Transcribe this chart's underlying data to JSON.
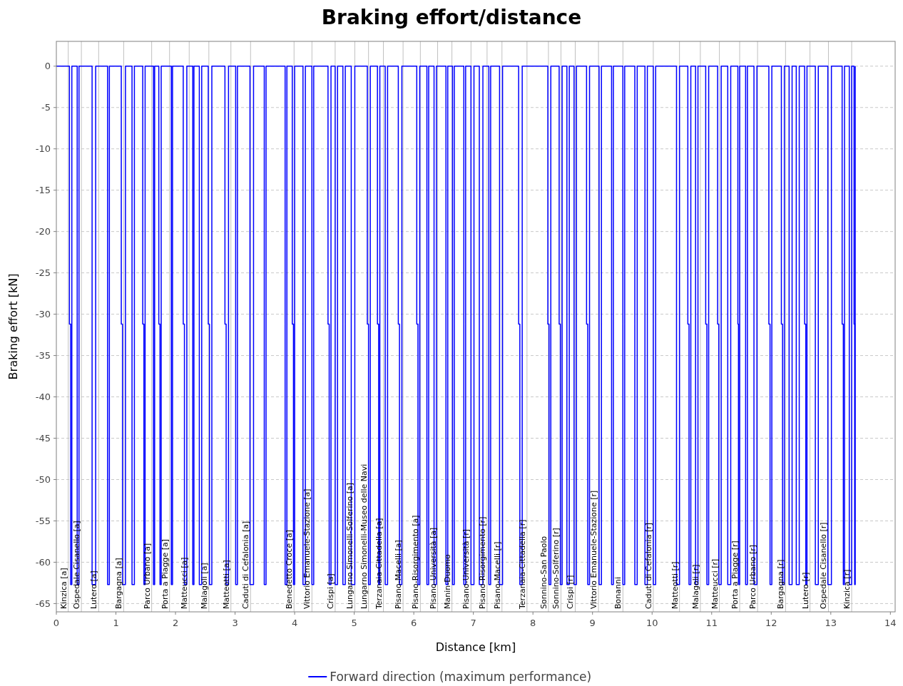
{
  "chart_data": {
    "type": "step",
    "title": "Braking effort/distance",
    "xlabel": "Distance [km]",
    "ylabel": "Braking effort [kN]",
    "xlim": [
      0,
      14.08
    ],
    "xticks": [
      0,
      1,
      2,
      3,
      4,
      5,
      6,
      7,
      8,
      9,
      10,
      11,
      12,
      13,
      14
    ],
    "ylim": [
      -66,
      3
    ],
    "yticks": [
      0,
      -5,
      -10,
      -15,
      -20,
      -25,
      -30,
      -35,
      -40,
      -45,
      -50,
      -55,
      -60,
      -65
    ],
    "grid": "y",
    "legend": "bottom",
    "line_style": "solid",
    "marker": "none",
    "series": [
      {
        "name": "Forward direction (maximum performance)",
        "color": "#0000ff",
        "x": [
          0,
          0.22,
          0.24,
          0.26,
          0.35,
          0.38,
          0.6,
          0.66,
          0.86,
          0.89,
          1.09,
          1.11,
          1.16,
          1.27,
          1.31,
          1.45,
          1.47,
          1.49,
          1.63,
          1.65,
          1.72,
          1.74,
          1.76,
          1.93,
          1.95,
          2.13,
          2.15,
          2.19,
          2.29,
          2.31,
          2.4,
          2.44,
          2.55,
          2.57,
          2.61,
          2.83,
          2.85,
          2.89,
          3.01,
          3.04,
          3.25,
          3.31,
          3.49,
          3.52,
          3.84,
          3.87,
          3.96,
          3.98,
          4,
          4.14,
          4.18,
          4.29,
          4.32,
          4.56,
          4.58,
          4.61,
          4.68,
          4.72,
          4.81,
          4.85,
          4.95,
          5.01,
          5.22,
          5.24,
          5.27,
          5.39,
          5.41,
          5.43,
          5.52,
          5.56,
          5.74,
          5.76,
          5.8,
          6.05,
          6.07,
          6.1,
          6.22,
          6.25,
          6.34,
          6.38,
          6.54,
          6.57,
          6.65,
          6.68,
          6.84,
          6.87,
          6.96,
          7.01,
          7.1,
          7.16,
          7.26,
          7.29,
          7.44,
          7.49,
          7.76,
          7.78,
          7.82,
          8.25,
          8.27,
          8.3,
          8.44,
          8.46,
          8.49,
          8.57,
          8.61,
          8.69,
          8.73,
          8.9,
          8.92,
          8.95,
          9.11,
          9.15,
          9.32,
          9.35,
          9.51,
          9.54,
          9.71,
          9.75,
          9.88,
          9.92,
          10.02,
          10.06,
          10.41,
          10.46,
          10.6,
          10.62,
          10.65,
          10.73,
          10.77,
          10.9,
          10.92,
          10.95,
          11.1,
          11.12,
          11.16,
          11.27,
          11.32,
          11.44,
          11.45,
          11.47,
          11.57,
          11.6,
          11.71,
          11.76,
          11.96,
          11.98,
          12.01,
          12.17,
          12.19,
          12.22,
          12.3,
          12.35,
          12.42,
          12.47,
          12.56,
          12.58,
          12.6,
          12.74,
          12.79,
          12.95,
          13.01,
          13.19,
          13.21,
          13.23,
          13.31,
          13.35,
          13.39,
          13.4,
          13.41
        ],
        "values": [
          0,
          -31.2,
          -62.7,
          0,
          -62.7,
          0,
          -62.7,
          0,
          -62.7,
          0,
          -31.2,
          -62.7,
          0,
          -62.7,
          0,
          -31.2,
          -62.7,
          0,
          -62.7,
          0,
          -31.2,
          -62.7,
          0,
          -62.7,
          0,
          -31.2,
          -62.7,
          0,
          -62.7,
          0,
          -62.7,
          0,
          -31.2,
          -62.7,
          0,
          -31.2,
          -62.7,
          0,
          -62.7,
          0,
          -62.7,
          0,
          -62.7,
          0,
          -62.7,
          0,
          -31.2,
          -62.7,
          0,
          -62.7,
          0,
          -62.7,
          0,
          -31.2,
          -62.7,
          0,
          -62.7,
          0,
          -62.7,
          0,
          -62.7,
          0,
          -31.2,
          -62.7,
          0,
          -31.2,
          -62.7,
          0,
          -62.7,
          0,
          -31.2,
          -62.7,
          0,
          -31.2,
          -62.7,
          0,
          -62.7,
          0,
          -62.7,
          0,
          -62.7,
          0,
          -62.7,
          0,
          -62.7,
          0,
          -62.7,
          0,
          -62.7,
          0,
          -62.7,
          0,
          -62.7,
          0,
          -31.2,
          -62.7,
          0,
          -31.2,
          -62.7,
          0,
          -31.2,
          -62.7,
          0,
          -62.7,
          0,
          -62.7,
          0,
          -31.2,
          -62.7,
          0,
          -62.7,
          0,
          -62.7,
          0,
          -62.7,
          0,
          -62.7,
          0,
          -62.7,
          0,
          -62.7,
          0,
          -62.7,
          0,
          -31.2,
          -62.7,
          0,
          -62.7,
          0,
          -31.2,
          -62.7,
          0,
          -31.2,
          -62.7,
          0,
          -62.7,
          0,
          -31.2,
          -62.7,
          0,
          -62.7,
          0,
          -62.7,
          0,
          -31.2,
          -62.7,
          0,
          -31.2,
          -62.7,
          0,
          -62.7,
          0,
          -62.7,
          0,
          -31.2,
          -62.7,
          0,
          -62.7,
          0,
          -62.7,
          0,
          -31.2,
          -62.7,
          0,
          -62.7,
          0,
          -31.2,
          -62.7,
          0
        ]
      }
    ],
    "ref_lines": [
      {
        "axis": "x",
        "value": 0.2,
        "label": "Kinzica [a]",
        "color": "#c0c0c0"
      },
      {
        "axis": "x",
        "value": 0.42,
        "label": "Ospedale Cisanello [a]",
        "color": "#c0c0c0"
      },
      {
        "axis": "x",
        "value": 0.71,
        "label": "Lutero [a]",
        "color": "#c0c0c0"
      },
      {
        "axis": "x",
        "value": 1.13,
        "label": "Bargagna [a]",
        "color": "#c0c0c0"
      },
      {
        "axis": "x",
        "value": 1.6,
        "label": "Parco Urbano [a]",
        "color": "#c0c0c0"
      },
      {
        "axis": "x",
        "value": 1.9,
        "label": "Porta a Piagge [a]",
        "color": "#c0c0c0"
      },
      {
        "axis": "x",
        "value": 2.23,
        "label": "Matteucci [a]",
        "color": "#c0c0c0"
      },
      {
        "axis": "x",
        "value": 2.56,
        "label": "Malagoli [a]",
        "color": "#c0c0c0"
      },
      {
        "axis": "x",
        "value": 2.93,
        "label": "Matteotti [a]",
        "color": "#c0c0c0"
      },
      {
        "axis": "x",
        "value": 3.26,
        "label": "Caduti di Cefalonia [a]",
        "color": "#c0c0c0"
      },
      {
        "axis": "x",
        "value": 3.99,
        "label": "Benedetto Croce [a]",
        "color": "#c0c0c0"
      },
      {
        "axis": "x",
        "value": 4.29,
        "label": "Vittorio Emanuele-Stazione [a]",
        "color": "#c0c0c0"
      },
      {
        "axis": "x",
        "value": 4.68,
        "label": "Crispi [a]",
        "color": "#c0c0c0"
      },
      {
        "axis": "x",
        "value": 5.01,
        "label": "Lungarno Simonelli-Solferino [a]",
        "color": "#c0c0c0"
      },
      {
        "axis": "x",
        "value": 5.24,
        "label": "Lungarno Simonelli-Museo delle Navi",
        "color": "#c0c0c0"
      },
      {
        "axis": "x",
        "value": 5.49,
        "label": "Terzanaia-Cittadella [a]",
        "color": "#c0c0c0"
      },
      {
        "axis": "x",
        "value": 5.82,
        "label": "Pisano-Macelli [a]",
        "color": "#c0c0c0"
      },
      {
        "axis": "x",
        "value": 6.11,
        "label": "Pisano-Risorgimento [a]",
        "color": "#c0c0c0"
      },
      {
        "axis": "x",
        "value": 6.4,
        "label": "Pisano-Università [a]",
        "color": "#c0c0c0"
      },
      {
        "axis": "x",
        "value": 6.64,
        "label": "Manin-Duomo",
        "color": "#c0c0c0"
      },
      {
        "axis": "x",
        "value": 6.96,
        "label": "Pisano-Università [r]",
        "color": "#c0c0c0"
      },
      {
        "axis": "x",
        "value": 7.23,
        "label": "Pisano-Risorgimento [r]",
        "color": "#c0c0c0"
      },
      {
        "axis": "x",
        "value": 7.48,
        "label": "Pisano-Macelli [r]",
        "color": "#c0c0c0"
      },
      {
        "axis": "x",
        "value": 7.9,
        "label": "Terzanaia-Cittadella [r]",
        "color": "#c0c0c0"
      },
      {
        "axis": "x",
        "value": 8.26,
        "label": "Sonnino-San Paolo",
        "color": "#c0c0c0"
      },
      {
        "axis": "x",
        "value": 8.47,
        "label": "Sonnino-Solferino [r]",
        "color": "#c0c0c0"
      },
      {
        "axis": "x",
        "value": 8.71,
        "label": "Crispi [r]",
        "color": "#c0c0c0"
      },
      {
        "axis": "x",
        "value": 9.1,
        "label": "Vittorio Emanuele-Stazione [r]",
        "color": "#c0c0c0"
      },
      {
        "axis": "x",
        "value": 9.51,
        "label": "Bonanni",
        "color": "#c0c0c0"
      },
      {
        "axis": "x",
        "value": 10.02,
        "label": "Caduti di Cefalonia [r]",
        "color": "#c0c0c0"
      },
      {
        "axis": "x",
        "value": 10.46,
        "label": "Matteotti [r]",
        "color": "#c0c0c0"
      },
      {
        "axis": "x",
        "value": 10.81,
        "label": "Malagoli [r]",
        "color": "#c0c0c0"
      },
      {
        "axis": "x",
        "value": 11.13,
        "label": "Matteucci [r]",
        "color": "#c0c0c0"
      },
      {
        "axis": "x",
        "value": 11.47,
        "label": "Porta a Piagge [r]",
        "color": "#c0c0c0"
      },
      {
        "axis": "x",
        "value": 11.77,
        "label": "Parco Urbano [r]",
        "color": "#c0c0c0"
      },
      {
        "axis": "x",
        "value": 12.24,
        "label": "Bargagna [r]",
        "color": "#c0c0c0"
      },
      {
        "axis": "x",
        "value": 12.65,
        "label": "Lutero [r]",
        "color": "#c0c0c0"
      },
      {
        "axis": "x",
        "value": 12.96,
        "label": "Ospedale Cisanello [r]",
        "color": "#c0c0c0"
      },
      {
        "axis": "x",
        "value": 13.35,
        "label": "Kinzica [r]",
        "color": "#c0c0c0"
      }
    ]
  }
}
